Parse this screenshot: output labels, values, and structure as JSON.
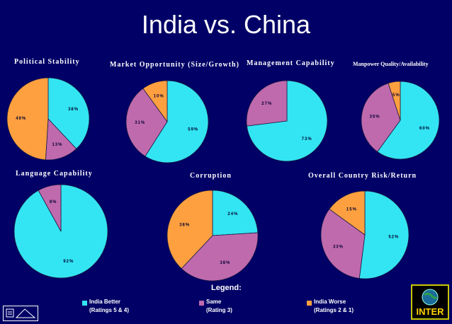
{
  "slide": {
    "title": "India vs. China"
  },
  "colors": {
    "background": "#000066",
    "india_better": "#33E5F2",
    "same": "#C06AAE",
    "india_worse": "#FFA040"
  },
  "legend": {
    "title": "Legend:",
    "items": [
      {
        "label": "India Better",
        "sub": "(Ratings 5 & 4)",
        "color": "#33E5F2"
      },
      {
        "label": "Same",
        "sub": "(Rating 3)",
        "color": "#C06AAE"
      },
      {
        "label": "India Worse",
        "sub": "(Ratings 2 & 1)",
        "color": "#FFA040"
      }
    ]
  },
  "logo": {
    "text": "INTER"
  },
  "chart_data": [
    {
      "type": "pie",
      "title": "Political Stability",
      "categories": [
        "India Better",
        "Same",
        "India Worse"
      ],
      "values": [
        38,
        13,
        49
      ],
      "labels": [
        "38%",
        "13%",
        "49%"
      ]
    },
    {
      "type": "pie",
      "title": "Market Opportunity (Size/Growth)",
      "categories": [
        "India Better",
        "Same",
        "India Worse"
      ],
      "values": [
        59,
        31,
        10
      ],
      "labels": [
        "59%",
        "31%",
        "10%"
      ]
    },
    {
      "type": "pie",
      "title": "Management Capability",
      "categories": [
        "India Better",
        "Same",
        "India Worse"
      ],
      "values": [
        73,
        27,
        0
      ],
      "labels": [
        "73%",
        "27%",
        ""
      ]
    },
    {
      "type": "pie",
      "title": "Manpower Quality/Availability",
      "categories": [
        "India Better",
        "Same",
        "India Worse"
      ],
      "values": [
        60,
        35,
        5
      ],
      "labels": [
        "60%",
        "35%",
        "5%"
      ]
    },
    {
      "type": "pie",
      "title": "Language Capability",
      "categories": [
        "India Better",
        "Same",
        "India Worse"
      ],
      "values": [
        92,
        8,
        0
      ],
      "labels": [
        "92%",
        "8%",
        ""
      ]
    },
    {
      "type": "pie",
      "title": "Corruption",
      "categories": [
        "India Better",
        "Same",
        "India Worse"
      ],
      "values": [
        24,
        38,
        38
      ],
      "labels": [
        "24%",
        "38%",
        "38%"
      ]
    },
    {
      "type": "pie",
      "title": "Overall Country Risk/Return",
      "categories": [
        "India Better",
        "Same",
        "India Worse"
      ],
      "values": [
        52,
        33,
        15
      ],
      "labels": [
        "52%",
        "33%",
        "15%"
      ]
    }
  ]
}
